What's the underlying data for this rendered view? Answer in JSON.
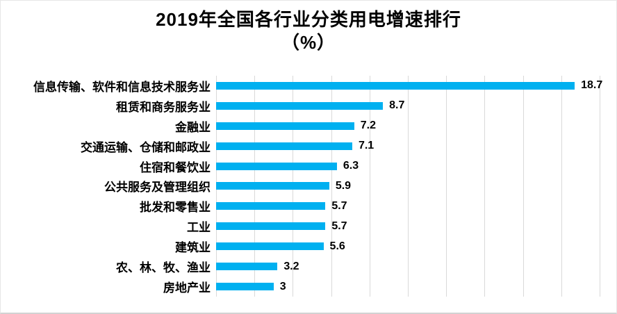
{
  "chart_data": {
    "type": "bar",
    "orientation": "horizontal",
    "title_line1": "2019年全国各行业分类用电增速排行",
    "title_line2": "（%）",
    "categories": [
      "信息传输、软件和信息技术服务业",
      "租赁和商务服务业",
      "金融业",
      "交通运输、仓储和邮政业",
      "住宿和餐饮业",
      "公共服务及管理组织",
      "批发和零售业",
      "工业",
      "建筑业",
      "农、林、牧、渔业",
      "房地产业"
    ],
    "values": [
      18.7,
      8.7,
      7.2,
      7.1,
      6.3,
      5.9,
      5.7,
      5.7,
      5.6,
      3.2,
      3
    ],
    "value_labels": [
      "18.7",
      "8.7",
      "7.2",
      "7.1",
      "6.3",
      "5.9",
      "5.7",
      "5.7",
      "5.6",
      "3.2",
      "3"
    ],
    "xlabel": "",
    "ylabel": "",
    "xlim": [
      0,
      20
    ],
    "gridline_step": 2,
    "grid": true,
    "legend_position": "none",
    "bar_color": "#00b0f0",
    "gridline_color": "#d9d9d9",
    "background_color": "#ffffff"
  }
}
